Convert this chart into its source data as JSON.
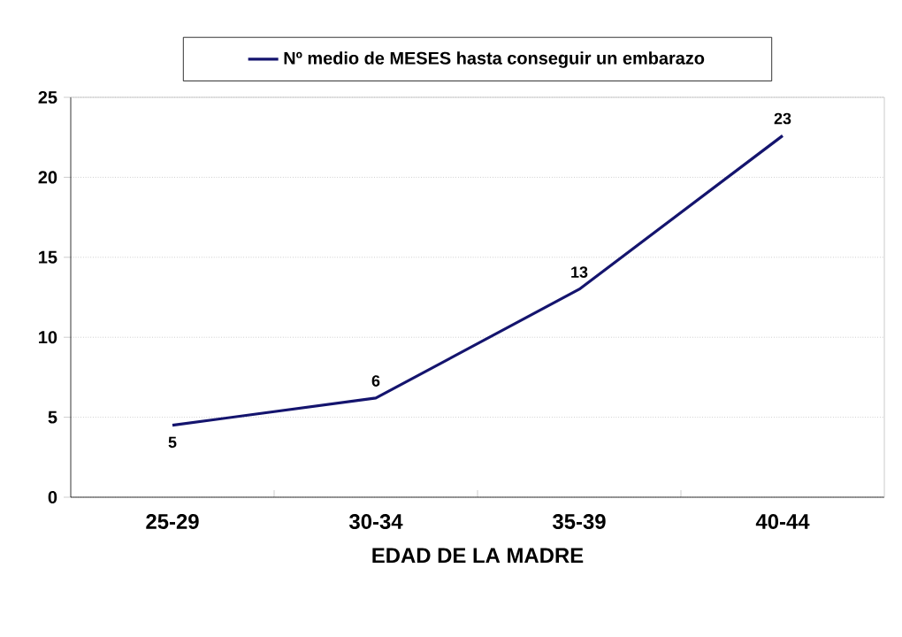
{
  "chart_data": {
    "type": "line",
    "xlabel": "EDAD DE LA MADRE",
    "categories": [
      "25-29",
      "30-34",
      "35-39",
      "40-44"
    ],
    "series": [
      {
        "name": "Nº medio de MESES hasta conseguir un embarazo",
        "color": "#14146e",
        "values": [
          4.5,
          6.2,
          13,
          22.6
        ],
        "value_labels": [
          "5",
          "6",
          "13",
          "23"
        ]
      }
    ],
    "ylim": [
      0,
      25
    ],
    "yticks": [
      0,
      5,
      10,
      15,
      20,
      25
    ],
    "grid": "y",
    "legend": "top",
    "marker": "none",
    "line_style": "solid"
  }
}
